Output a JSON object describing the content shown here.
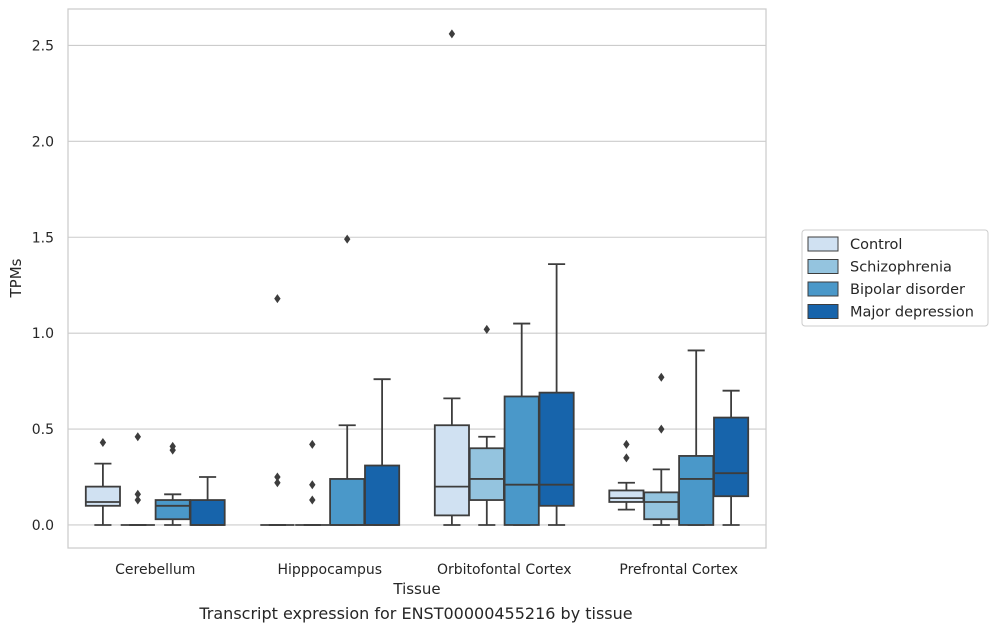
{
  "caption": "Transcript expression for ENST00000455216 by tissue",
  "chart_data": {
    "type": "box",
    "xlabel": "Tissue",
    "ylabel": "TPMs",
    "ylim": [
      -0.12,
      2.69
    ],
    "yticks": [
      0.0,
      0.5,
      1.0,
      1.5,
      2.0,
      2.5
    ],
    "ytick_labels": [
      "0.0",
      "0.5",
      "1.0",
      "1.5",
      "2.0",
      "2.5"
    ],
    "grid": "horizontal",
    "legend_position": "right-outside",
    "categories": [
      "Cerebellum",
      "Hipppocampus",
      "Orbitofontal Cortex",
      "Prefrontal Cortex"
    ],
    "series": [
      {
        "name": "Control",
        "color": "#d0e1f2",
        "boxes": [
          {
            "whislo": 0.0,
            "q1": 0.1,
            "med": 0.12,
            "q3": 0.2,
            "whishi": 0.32,
            "fliers": [
              0.43
            ]
          },
          {
            "whislo": 0.0,
            "q1": 0.0,
            "med": 0.0,
            "q3": 0.0,
            "whishi": 0.0,
            "fliers": [
              0.22,
              0.25,
              1.18
            ]
          },
          {
            "whislo": 0.0,
            "q1": 0.05,
            "med": 0.2,
            "q3": 0.52,
            "whishi": 0.66,
            "fliers": [
              2.56
            ]
          },
          {
            "whislo": 0.08,
            "q1": 0.12,
            "med": 0.14,
            "q3": 0.18,
            "whishi": 0.22,
            "fliers": [
              0.35,
              0.42
            ]
          }
        ]
      },
      {
        "name": "Schizophrenia",
        "color": "#94c4df",
        "boxes": [
          {
            "whislo": 0.0,
            "q1": 0.0,
            "med": 0.0,
            "q3": 0.0,
            "whishi": 0.0,
            "fliers": [
              0.13,
              0.16,
              0.46
            ]
          },
          {
            "whislo": 0.0,
            "q1": 0.0,
            "med": 0.0,
            "q3": 0.0,
            "whishi": 0.0,
            "fliers": [
              0.13,
              0.21,
              0.42
            ]
          },
          {
            "whislo": 0.0,
            "q1": 0.13,
            "med": 0.24,
            "q3": 0.4,
            "whishi": 0.46,
            "fliers": [
              1.02
            ]
          },
          {
            "whislo": 0.0,
            "q1": 0.03,
            "med": 0.12,
            "q3": 0.17,
            "whishi": 0.29,
            "fliers": [
              0.5,
              0.77
            ]
          }
        ]
      },
      {
        "name": "Bipolar disorder",
        "color": "#4a98c9",
        "boxes": [
          {
            "whislo": 0.0,
            "q1": 0.03,
            "med": 0.1,
            "q3": 0.13,
            "whishi": 0.16,
            "fliers": [
              0.39,
              0.41
            ]
          },
          {
            "whislo": 0.0,
            "q1": 0.0,
            "med": 0.0,
            "q3": 0.24,
            "whishi": 0.52,
            "fliers": [
              1.49
            ]
          },
          {
            "whislo": 0.0,
            "q1": 0.0,
            "med": 0.21,
            "q3": 0.67,
            "whishi": 1.05,
            "fliers": []
          },
          {
            "whislo": 0.0,
            "q1": 0.0,
            "med": 0.24,
            "q3": 0.36,
            "whishi": 0.91,
            "fliers": []
          }
        ]
      },
      {
        "name": "Major depression",
        "color": "#1764ab",
        "boxes": [
          {
            "whislo": 0.0,
            "q1": 0.0,
            "med": 0.0,
            "q3": 0.13,
            "whishi": 0.25,
            "fliers": []
          },
          {
            "whislo": 0.0,
            "q1": 0.0,
            "med": 0.0,
            "q3": 0.31,
            "whishi": 0.76,
            "fliers": []
          },
          {
            "whislo": 0.0,
            "q1": 0.1,
            "med": 0.21,
            "q3": 0.69,
            "whishi": 1.36,
            "fliers": []
          },
          {
            "whislo": 0.0,
            "q1": 0.15,
            "med": 0.27,
            "q3": 0.56,
            "whishi": 0.7,
            "fliers": []
          }
        ]
      }
    ]
  }
}
